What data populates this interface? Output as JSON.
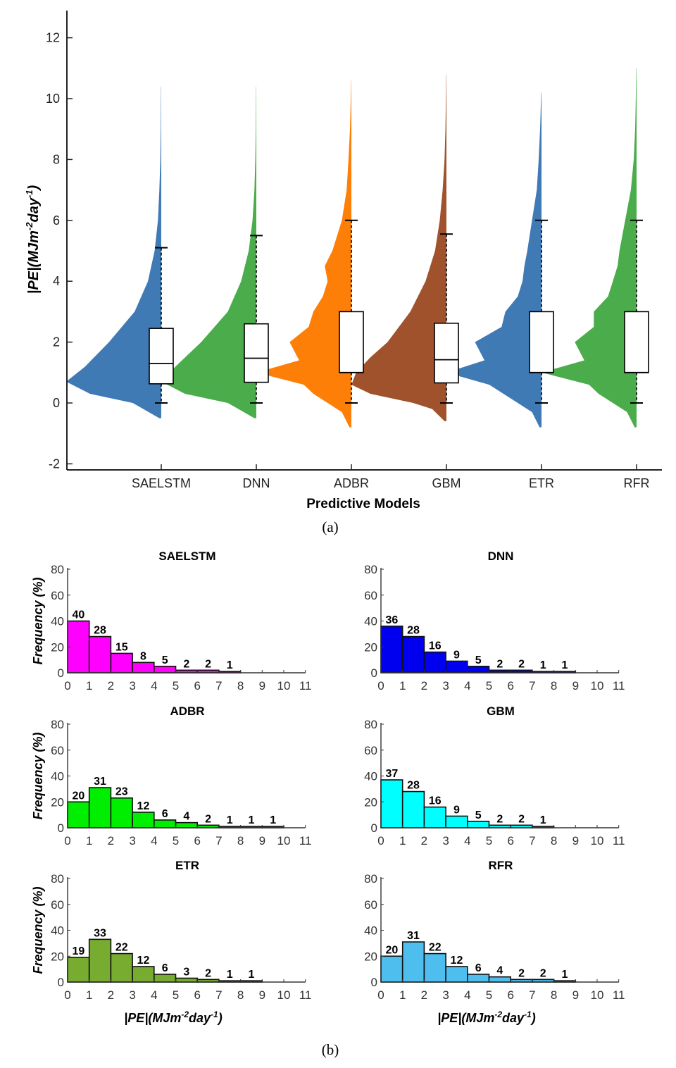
{
  "chart_data": [
    {
      "type": "violin-box",
      "xlabel": "Predictive Models",
      "ylabel": {
        "pre": "|PE|(MJm",
        "sup1": "-2",
        "mid": "day",
        "sup2": "-1",
        "post": ")"
      },
      "ylim": [
        -2,
        12.5
      ],
      "yticks": [
        "-2",
        "0",
        "2",
        "4",
        "6",
        "8",
        "10",
        "12"
      ],
      "caption": "(a)",
      "models": [
        {
          "name": "SAELSTM",
          "color": "#3f7ab5",
          "box": {
            "q1": 0.63,
            "median": 1.3,
            "q3": 2.45,
            "lw": 0,
            "uw": 5.1
          },
          "violin": [
            [
              -0.5,
              0.02
            ],
            [
              0,
              0.3
            ],
            [
              0.3,
              0.75
            ],
            [
              0.7,
              1.0
            ],
            [
              1.2,
              0.8
            ],
            [
              2,
              0.55
            ],
            [
              3,
              0.28
            ],
            [
              4,
              0.14
            ],
            [
              5,
              0.07
            ],
            [
              6,
              0.035
            ],
            [
              7,
              0.02
            ],
            [
              8,
              0.01
            ],
            [
              9,
              0.005
            ],
            [
              10.4,
              0.002
            ]
          ]
        },
        {
          "name": "DNN",
          "color": "#4aac4a",
          "box": {
            "q1": 0.68,
            "median": 1.47,
            "q3": 2.6,
            "lw": 0,
            "uw": 5.5
          },
          "violin": [
            [
              -0.5,
              0.02
            ],
            [
              0,
              0.3
            ],
            [
              0.3,
              0.75
            ],
            [
              0.7,
              1.0
            ],
            [
              1.2,
              0.85
            ],
            [
              2,
              0.58
            ],
            [
              3,
              0.3
            ],
            [
              4,
              0.16
            ],
            [
              5,
              0.08
            ],
            [
              6,
              0.04
            ],
            [
              7,
              0.02
            ],
            [
              8,
              0.01
            ],
            [
              9,
              0.005
            ],
            [
              10.4,
              0.002
            ]
          ]
        },
        {
          "name": "ADBR",
          "color": "#fd7f07",
          "box": {
            "q1": 1.0,
            "median": 1.0,
            "q3": 3.0,
            "lw": 0,
            "uw": 6.0
          },
          "violin": [
            [
              -0.8,
              0.02
            ],
            [
              -0.3,
              0.1
            ],
            [
              0,
              0.25
            ],
            [
              0.3,
              0.4
            ],
            [
              0.6,
              0.5
            ],
            [
              1,
              1.0
            ],
            [
              1.4,
              0.55
            ],
            [
              2,
              0.65
            ],
            [
              2.5,
              0.45
            ],
            [
              3,
              0.4
            ],
            [
              3.5,
              0.3
            ],
            [
              4,
              0.25
            ],
            [
              4.5,
              0.28
            ],
            [
              5,
              0.2
            ],
            [
              5.5,
              0.15
            ],
            [
              6,
              0.1
            ],
            [
              7,
              0.05
            ],
            [
              8,
              0.03
            ],
            [
              9,
              0.015
            ],
            [
              10,
              0.006
            ],
            [
              10.6,
              0.002
            ]
          ]
        },
        {
          "name": "GBM",
          "color": "#a0522d",
          "box": {
            "q1": 0.66,
            "median": 1.42,
            "q3": 2.62,
            "lw": 0,
            "uw": 5.55
          },
          "violin": [
            [
              -0.6,
              0.02
            ],
            [
              -0.2,
              0.15
            ],
            [
              0,
              0.35
            ],
            [
              0.3,
              0.8
            ],
            [
              0.6,
              1.0
            ],
            [
              1,
              0.95
            ],
            [
              1.5,
              0.8
            ],
            [
              2,
              0.62
            ],
            [
              3,
              0.38
            ],
            [
              4,
              0.22
            ],
            [
              5,
              0.12
            ],
            [
              6,
              0.07
            ],
            [
              7,
              0.04
            ],
            [
              8,
              0.02
            ],
            [
              9,
              0.01
            ],
            [
              10,
              0.005
            ],
            [
              10.8,
              0.002
            ]
          ]
        },
        {
          "name": "ETR",
          "color": "#3f7ab5",
          "box": {
            "q1": 1.0,
            "median": 1.0,
            "q3": 3.0,
            "lw": 0,
            "uw": 6.0
          },
          "violin": [
            [
              -0.8,
              0.02
            ],
            [
              -0.3,
              0.1
            ],
            [
              0,
              0.25
            ],
            [
              0.3,
              0.4
            ],
            [
              0.6,
              0.55
            ],
            [
              1,
              1.0
            ],
            [
              1.4,
              0.6
            ],
            [
              2,
              0.7
            ],
            [
              2.5,
              0.42
            ],
            [
              3,
              0.38
            ],
            [
              3.5,
              0.25
            ],
            [
              4,
              0.2
            ],
            [
              4.5,
              0.18
            ],
            [
              5,
              0.15
            ],
            [
              6,
              0.1
            ],
            [
              7,
              0.05
            ],
            [
              8,
              0.03
            ],
            [
              9,
              0.015
            ],
            [
              10.2,
              0.003
            ]
          ]
        },
        {
          "name": "RFR",
          "color": "#4aac4a",
          "box": {
            "q1": 1.0,
            "median": 1.0,
            "q3": 3.0,
            "lw": 0,
            "uw": 6.0
          },
          "violin": [
            [
              -0.8,
              0.02
            ],
            [
              -0.3,
              0.1
            ],
            [
              0,
              0.25
            ],
            [
              0.3,
              0.4
            ],
            [
              0.6,
              0.5
            ],
            [
              1,
              1.0
            ],
            [
              1.4,
              0.55
            ],
            [
              2,
              0.65
            ],
            [
              2.5,
              0.45
            ],
            [
              3,
              0.45
            ],
            [
              3.5,
              0.3
            ],
            [
              4,
              0.25
            ],
            [
              4.5,
              0.2
            ],
            [
              5,
              0.18
            ],
            [
              6,
              0.12
            ],
            [
              7,
              0.06
            ],
            [
              8,
              0.03
            ],
            [
              9,
              0.015
            ],
            [
              10,
              0.008
            ],
            [
              11,
              0.003
            ]
          ]
        }
      ]
    },
    {
      "type": "bar",
      "caption": "(b)",
      "ylabel": "Frequency (%)",
      "xlabel": {
        "pre": "|PE|(MJm",
        "sup1": "-2",
        "mid": "day",
        "sup2": "-1",
        "post": ")"
      },
      "ylim": [
        0,
        80
      ],
      "yticks": [
        "0",
        "20",
        "40",
        "60",
        "80"
      ],
      "xticks": [
        "0",
        "1",
        "2",
        "3",
        "4",
        "5",
        "6",
        "7",
        "8",
        "9",
        "10",
        "11"
      ],
      "panels": [
        {
          "title": "SAELSTM",
          "color": "#ff00ff",
          "values": [
            40,
            28,
            15,
            8,
            5,
            2,
            2,
            1,
            0,
            0,
            0
          ],
          "labels": [
            "40",
            "28",
            "15",
            "8",
            "5",
            "2",
            "2",
            "1",
            "",
            "",
            ""
          ]
        },
        {
          "title": "DNN",
          "color": "#0000ee",
          "values": [
            36,
            28,
            16,
            9,
            5,
            2,
            2,
            1,
            1,
            0,
            0
          ],
          "labels": [
            "36",
            "28",
            "16",
            "9",
            "5",
            "2",
            "2",
            "1",
            "1",
            "",
            ""
          ]
        },
        {
          "title": "ADBR",
          "color": "#00ee00",
          "values": [
            20,
            31,
            23,
            12,
            6,
            4,
            2,
            1,
            1,
            1,
            0
          ],
          "labels": [
            "20",
            "31",
            "23",
            "12",
            "6",
            "4",
            "2",
            "1",
            "1",
            "1",
            ""
          ]
        },
        {
          "title": "GBM",
          "color": "#00ffff",
          "values": [
            37,
            28,
            16,
            9,
            5,
            2,
            2,
            1,
            0,
            0,
            0
          ],
          "labels": [
            "37",
            "28",
            "16",
            "9",
            "5",
            "2",
            "2",
            "1",
            "",
            "",
            ""
          ]
        },
        {
          "title": "ETR",
          "color": "#77ac30",
          "values": [
            19,
            33,
            22,
            12,
            6,
            3,
            2,
            1,
            1,
            0,
            0
          ],
          "labels": [
            "19",
            "33",
            "22",
            "12",
            "6",
            "3",
            "2",
            "1",
            "1",
            "",
            ""
          ]
        },
        {
          "title": "RFR",
          "color": "#4dbeee",
          "values": [
            20,
            31,
            22,
            12,
            6,
            4,
            2,
            2,
            1,
            0,
            0
          ],
          "labels": [
            "20",
            "31",
            "22",
            "12",
            "6",
            "4",
            "2",
            "2",
            "1",
            "",
            ""
          ]
        }
      ]
    }
  ]
}
